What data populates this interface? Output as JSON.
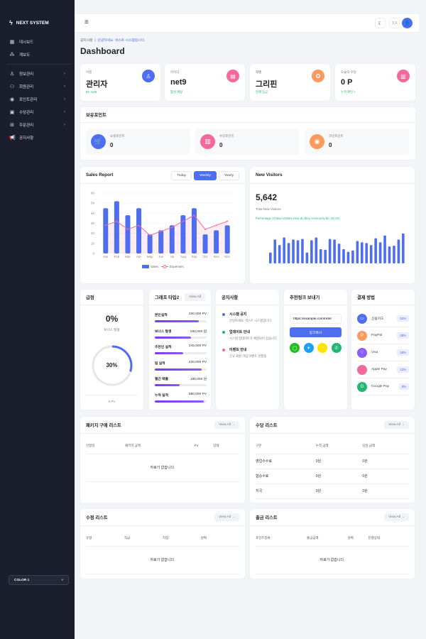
{
  "brand": "NEXT SYSTEM",
  "sidebar": {
    "items": [
      {
        "label": "대시보드",
        "icon": "grid-icon"
      },
      {
        "label": "계보도",
        "icon": "tree-icon"
      },
      {
        "label": "정보관리",
        "icon": "user-icon",
        "chevron": true
      },
      {
        "label": "회원관리",
        "icon": "users-icon",
        "chevron": true
      },
      {
        "label": "포인트관리",
        "icon": "coin-icon",
        "chevron": true
      },
      {
        "label": "수당관리",
        "icon": "money-icon",
        "chevron": true
      },
      {
        "label": "주문관리",
        "icon": "box-icon",
        "chevron": true
      },
      {
        "label": "공지사항",
        "icon": "megaphone-icon"
      }
    ],
    "color_select": "COLOR 1"
  },
  "breadcrumb": {
    "section": "공지사항",
    "message": "안녕하세요. 넥스트 시스템입니다."
  },
  "page_title": "Dashboard",
  "stats": [
    {
      "label": "이름",
      "value": "관리자",
      "sub": "ID: net9",
      "color": "#4e6ef2",
      "icon": "user-icon"
    },
    {
      "label": "아이디",
      "value": "net9",
      "sub": "활성 계정",
      "color": "#f5689a",
      "icon": "id-card-icon"
    },
    {
      "label": "레벨",
      "value": "그리핀",
      "sub": "현재 등급",
      "color": "#fb9a5e",
      "icon": "award-icon"
    },
    {
      "label": "오늘의 수당",
      "value": "0 P",
      "sub": "누적 확인 +",
      "color": "#f5689a",
      "icon": "wallet-icon"
    }
  ],
  "points": {
    "title": "보유포인트",
    "items": [
      {
        "label": "쇼핑포인트",
        "value": "0",
        "color": "#4e6ef2",
        "icon": "cart-icon"
      },
      {
        "label": "수당포인트",
        "value": "0",
        "color": "#f5689a",
        "icon": "wallet-icon"
      },
      {
        "label": "코인포인트",
        "value": "0",
        "color": "#fb9a5e",
        "icon": "coin-icon"
      }
    ]
  },
  "sales": {
    "title": "Sales Report",
    "tabs": [
      "Today",
      "Weekly",
      "Yearly"
    ],
    "active_tab": "Weekly"
  },
  "visitors": {
    "title": "New Visitors",
    "total": "5,642",
    "total_label": "Total New Visitors",
    "note": "Percentage of New Visitors How do they commonly be: 45.1%"
  },
  "chart_data": [
    {
      "type": "bar",
      "title": "Sales Report",
      "categories": [
        "Jan",
        "Feb",
        "Mar",
        "Apr",
        "May",
        "Jun",
        "Jul",
        "Aug",
        "Sep",
        "Oct",
        "Nov",
        "Dec"
      ],
      "series": [
        {
          "name": "Sales",
          "type": "bar",
          "values": [
            45,
            52,
            38,
            45,
            19,
            23,
            28,
            38,
            45,
            19,
            23,
            28
          ],
          "color": "#4e6ef2"
        },
        {
          "name": "Expenses",
          "type": "line",
          "values": [
            28,
            32,
            24,
            28,
            18,
            22,
            26,
            32,
            38,
            24,
            28,
            32
          ],
          "color": "#f5689a"
        }
      ],
      "ylim": [
        0,
        60
      ],
      "yticks": [
        0,
        10,
        20,
        30,
        40,
        50,
        60
      ],
      "legend": "bottom"
    },
    {
      "type": "bar",
      "title": "New Visitors",
      "values": [
        16,
        35,
        27,
        38,
        30,
        35,
        34,
        36,
        16,
        34,
        38,
        21,
        20,
        36,
        35,
        29,
        21,
        17,
        19,
        33,
        31,
        30,
        27,
        37,
        31,
        41,
        25,
        26,
        35,
        44
      ],
      "ylim": [
        0,
        50
      ],
      "color": "#4e6ef2"
    }
  ],
  "rank": {
    "title": "급점",
    "percent": "0%",
    "percent_label": "보너스 발생",
    "ring_value": "30%",
    "ring_fraction": 0.3,
    "footer": "0 PV"
  },
  "graph2": {
    "title": "그래프 타입2",
    "view_all": "View All",
    "items": [
      {
        "label": "본인실적",
        "value": "330,000 PV",
        "fill": 0.85
      },
      {
        "label": "보너스 발생",
        "value": "280,000 원",
        "fill": 0.7
      },
      {
        "label": "추천인 실적",
        "value": "245,000 PV",
        "fill": 0.55
      },
      {
        "label": "팀 실적",
        "value": "420,000 PV",
        "fill": 0.9
      },
      {
        "label": "월간 매출",
        "value": "185,000 원",
        "fill": 0.48
      },
      {
        "label": "누적 실적",
        "value": "680,000 PV",
        "fill": 0.95
      }
    ]
  },
  "notices": {
    "title": "공지사항",
    "items": [
      {
        "title": "시스템 공지",
        "desc": "안녕하세요. 넥스트 시스템입니다.",
        "color": "#4e6ef2"
      },
      {
        "title": "업데이트 안내",
        "desc": "시스템 업데이트가 예정되어 있습니다.",
        "color": "#22b573"
      },
      {
        "title": "이벤트 안내",
        "desc": "신규 회원 가입 이벤트 진행중",
        "color": "#f5689a"
      }
    ]
  },
  "referral": {
    "title": "추천링크 보내기",
    "url": "https://example.com/refer",
    "copy_label": "링크복사",
    "share": [
      {
        "icon": "line-icon",
        "color": "#1fbf1f"
      },
      {
        "icon": "twitter-icon",
        "color": "#1da1f2"
      },
      {
        "icon": "kakao-icon",
        "color": "#fee500"
      },
      {
        "icon": "phone-icon",
        "color": "#22b573"
      }
    ]
  },
  "payment": {
    "title": "결제 방법",
    "items": [
      {
        "label": "신용카드",
        "pct": "52%",
        "color": "#4e6ef2",
        "icon": "card-icon"
      },
      {
        "label": "PayPal",
        "pct": "28%",
        "color": "#fb9a5e",
        "icon": "paypal-icon"
      },
      {
        "label": "Visa",
        "pct": "18%",
        "color": "#8b5cf6",
        "icon": "visa-icon"
      },
      {
        "label": "Apple Pay",
        "pct": "12%",
        "color": "#f5689a",
        "icon": "apple-icon"
      },
      {
        "label": "Google Pay",
        "pct": "8%",
        "color": "#22b573",
        "icon": "google-icon"
      }
    ]
  },
  "lists": {
    "package": {
      "title": "패키지 구매 리스트",
      "view_all": "View All →",
      "columns": [
        "신청일",
        "패키지 금액",
        "PV",
        "상태"
      ],
      "empty": "자료가 없습니다."
    },
    "allowance": {
      "title": "수당 리스트",
      "view_all": "View All →",
      "columns": [
        "구분",
        "누적 금액",
        "당일 금액"
      ],
      "rows": [
        [
          "영업수수료",
          "0원",
          "0원"
        ],
        [
          "협승수료",
          "0원",
          "0원"
        ],
        [
          "지국",
          "0원",
          "0원"
        ]
      ]
    },
    "modify": {
      "title": "수정 리스트",
      "view_all": "View All →",
      "columns": [
        "유형",
        "직급",
        "지점",
        "날짜"
      ],
      "empty": "자료가 없습니다."
    },
    "withdraw": {
      "title": "출금 리스트",
      "view_all": "View All →",
      "columns": [
        "포인트종류",
        "출금금액",
        "날짜",
        "진행상태"
      ],
      "empty": "자료가 없습니다."
    }
  }
}
